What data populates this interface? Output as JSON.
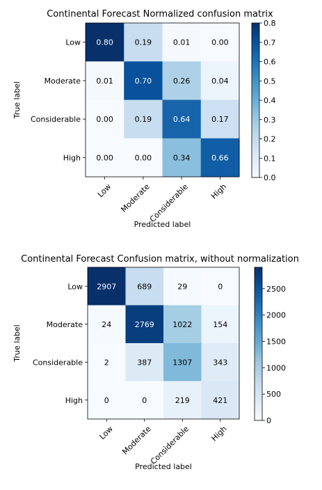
{
  "chart_data": [
    {
      "type": "heatmap",
      "title": "Continental Forecast Normalized confusion matrix",
      "xlabel": "Predicted label",
      "ylabel": "True label",
      "x_categories": [
        "Low",
        "Moderate",
        "Considerable",
        "High"
      ],
      "y_categories": [
        "Low",
        "Moderate",
        "Considerable",
        "High"
      ],
      "values": [
        [
          0.8,
          0.19,
          0.01,
          0.0
        ],
        [
          0.01,
          0.7,
          0.26,
          0.04
        ],
        [
          0.0,
          0.19,
          0.64,
          0.17
        ],
        [
          0.0,
          0.0,
          0.34,
          0.66
        ]
      ],
      "value_format": "fixed2",
      "colormap": "Blues",
      "vmin": 0.0,
      "vmax": 0.8,
      "colorbar_ticks": [
        "0.0",
        "0.1",
        "0.2",
        "0.3",
        "0.4",
        "0.5",
        "0.6",
        "0.7",
        "0.8"
      ],
      "colorbar_tick_values": [
        0.0,
        0.1,
        0.2,
        0.3,
        0.4,
        0.5,
        0.6,
        0.7,
        0.8
      ]
    },
    {
      "type": "heatmap",
      "title": "Continental Forecast Confusion matrix, without normalization",
      "xlabel": "Predicted label",
      "ylabel": "True label",
      "x_categories": [
        "Low",
        "Moderate",
        "Considerable",
        "High"
      ],
      "y_categories": [
        "Low",
        "Moderate",
        "Considerable",
        "High"
      ],
      "values": [
        [
          2907,
          689,
          29,
          0
        ],
        [
          24,
          2769,
          1022,
          154
        ],
        [
          2,
          387,
          1307,
          343
        ],
        [
          0,
          0,
          219,
          421
        ]
      ],
      "value_format": "integer",
      "colormap": "Blues",
      "vmin": 0,
      "vmax": 2907,
      "colorbar_ticks": [
        "0",
        "500",
        "1000",
        "1500",
        "2000",
        "2500"
      ],
      "colorbar_tick_values": [
        0,
        500,
        1000,
        1500,
        2000,
        2500
      ]
    }
  ]
}
